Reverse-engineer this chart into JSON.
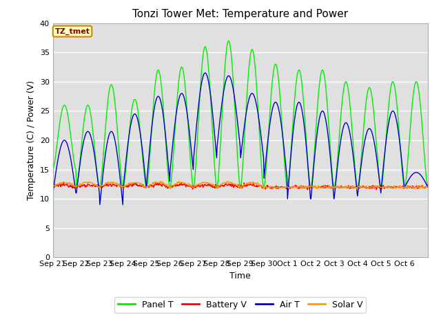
{
  "title": "Tonzi Tower Met: Temperature and Power",
  "xlabel": "Time",
  "ylabel": "Temperature (C) / Power (V)",
  "ylim": [
    0,
    40
  ],
  "yticks": [
    0,
    5,
    10,
    15,
    20,
    25,
    30,
    35,
    40
  ],
  "annotation": "TZ_tmet",
  "colors": {
    "panel_t": "#00ee00",
    "battery_v": "#ff0000",
    "air_t": "#0000cc",
    "solar_v": "#ff9900"
  },
  "legend_labels": [
    "Panel T",
    "Battery V",
    "Air T",
    "Solar V"
  ],
  "bg_color": "#e0e0e0",
  "fig_bg": "#ffffff",
  "x_labels": [
    "Sep 21",
    "Sep 22",
    "Sep 23",
    "Sep 24",
    "Sep 25",
    "Sep 26",
    "Sep 27",
    "Sep 28",
    "Sep 29",
    "Sep 30",
    "Oct 1",
    "Oct 2",
    "Oct 3",
    "Oct 4",
    "Oct 5",
    "Oct 6"
  ],
  "panel_peaks": [
    26,
    26,
    29.5,
    27,
    32,
    32.5,
    36,
    37,
    35.5,
    33,
    32,
    32,
    30,
    29,
    30,
    30
  ],
  "panel_mins": [
    15,
    12,
    12,
    12,
    12,
    12,
    12,
    12,
    12,
    12,
    12,
    12,
    12,
    12,
    12,
    12
  ],
  "air_peaks": [
    20,
    21.5,
    21.5,
    24.5,
    27.5,
    28,
    31.5,
    31,
    28,
    26.5,
    26.5,
    25,
    23,
    22,
    25,
    14.5
  ],
  "air_mins": [
    11,
    11,
    9,
    12,
    13,
    15,
    17,
    19,
    17,
    13.5,
    10,
    10,
    10.5,
    11,
    12,
    12
  ],
  "battery_base": 12.0,
  "solar_base": 12.0
}
